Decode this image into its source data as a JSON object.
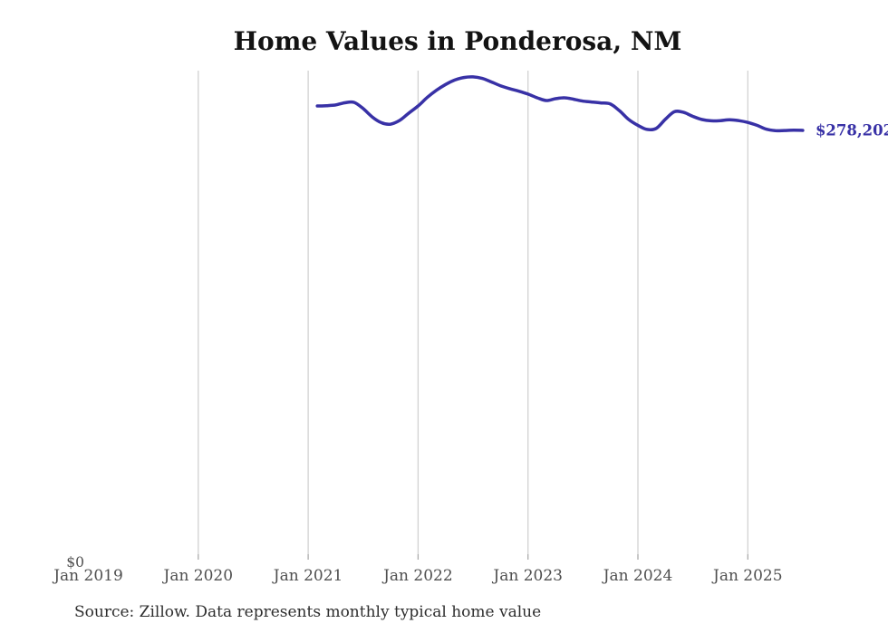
{
  "colors": {
    "background": "#ffffff",
    "line": "#3831a6",
    "end_label": "#3831a6",
    "gridline": "#d2d2d2",
    "tick": "#ababab",
    "axis_label": "#4f4f4f",
    "title": "#131313",
    "source": "#2e2e2e"
  },
  "chart_data": {
    "type": "line",
    "title": "Home Values in Ponderosa, NM",
    "source_note": "Source: Zillow. Data represents monthly typical home value",
    "x_ticks": [
      {
        "label": "Jan 2019",
        "year": 2019,
        "gridline": false
      },
      {
        "label": "Jan 2020",
        "year": 2020,
        "gridline": true
      },
      {
        "label": "Jan 2021",
        "year": 2021,
        "gridline": true
      },
      {
        "label": "Jan 2022",
        "year": 2022,
        "gridline": true
      },
      {
        "label": "Jan 2023",
        "year": 2023,
        "gridline": true
      },
      {
        "label": "Jan 2024",
        "year": 2024,
        "gridline": true
      },
      {
        "label": "Jan 2025",
        "year": 2025,
        "gridline": true
      }
    ],
    "y_tick_label": "$0",
    "ylim": [
      0,
      318000
    ],
    "grid": "vertical-only",
    "legend": "none",
    "end_label": "$278,202",
    "end_value": 278202,
    "series": [
      {
        "name": "Monthly typical home value",
        "frequency": "monthly",
        "start_month": "2021-02",
        "end_month": "2025-07",
        "values": [
          294200,
          294400,
          294900,
          296300,
          296600,
          292500,
          287000,
          283200,
          282300,
          284800,
          289600,
          294200,
          299800,
          304500,
          308300,
          311200,
          312900,
          313300,
          312300,
          310000,
          307500,
          305600,
          303900,
          302000,
          299600,
          297800,
          299000,
          299600,
          298600,
          297400,
          296800,
          296200,
          295500,
          291000,
          285300,
          281500,
          278800,
          279500,
          285500,
          290500,
          290000,
          287400,
          285300,
          284500,
          284600,
          285200,
          284600,
          283400,
          281500,
          279000,
          278000,
          278100,
          278300,
          278202
        ]
      }
    ]
  }
}
